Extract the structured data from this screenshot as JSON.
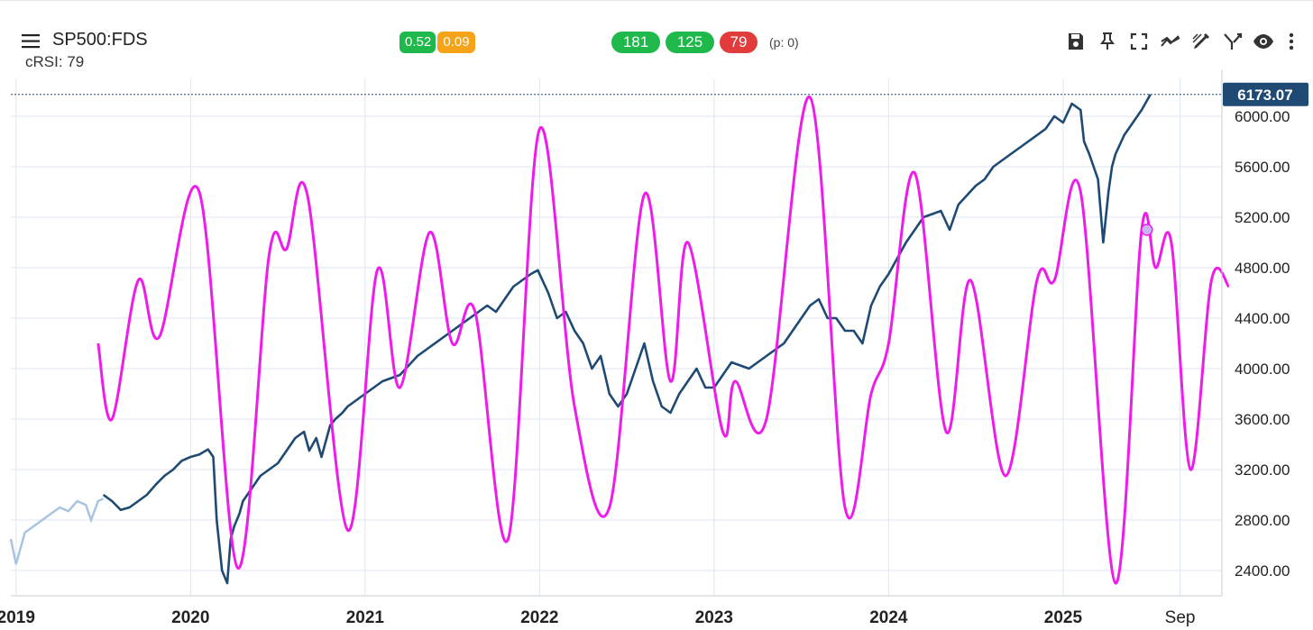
{
  "header": {
    "symbol": "SP500:FDS",
    "indicator_label": "cRSI: 79",
    "badges": {
      "a": "0.52",
      "b": "0.09"
    },
    "pills": {
      "p1": "181",
      "p2": "125",
      "p3": "79"
    },
    "p_note": "(p: 0)"
  },
  "toolbar": {
    "icons": [
      "save-icon",
      "pin-icon",
      "fullscreen-icon",
      "trend-icon",
      "draw-icon",
      "merge-icon",
      "eye-icon",
      "more-icon"
    ]
  },
  "colors": {
    "price": "#1f4a73",
    "price_history": "#a9c4e2",
    "crsi": "#ee1cea",
    "grid": "#dde6ef",
    "current_price_bg": "#1f4a73",
    "green": "#1fb84a",
    "orange": "#f5a318",
    "red": "#e23b3b"
  },
  "chart_data": {
    "type": "line",
    "title": "SP500:FDS",
    "xlabel": "",
    "ylabel": "",
    "ylim": [
      2200,
      6300
    ],
    "xlim": [
      2018.97,
      2025.91
    ],
    "y_ticks": [
      2400,
      2800,
      3200,
      3600,
      4000,
      4400,
      4800,
      5200,
      5600,
      6000
    ],
    "y_tick_labels": [
      "2400.00",
      "2800.00",
      "3200.00",
      "3600.00",
      "4000.00",
      "4400.00",
      "4800.00",
      "5200.00",
      "5600.00",
      "6000.00"
    ],
    "x_ticks": [
      2019.0,
      2020.0,
      2021.0,
      2022.0,
      2023.0,
      2024.0,
      2025.0,
      2025.67
    ],
    "x_tick_labels": [
      "2019",
      "2020",
      "2021",
      "2022",
      "2023",
      "2024",
      "2025",
      "Sep"
    ],
    "current_value": 6173.07,
    "current_value_label": "6173.07",
    "marker": {
      "x": 2025.48,
      "y": 5100
    },
    "series": [
      {
        "name": "SP500 (earlier)",
        "style": "history",
        "x": [
          2018.97,
          2019.0,
          2019.05,
          2019.1,
          2019.15,
          2019.2,
          2019.25,
          2019.3,
          2019.35,
          2019.4,
          2019.43,
          2019.47,
          2019.5
        ],
        "y": [
          2650,
          2450,
          2700,
          2750,
          2800,
          2850,
          2900,
          2870,
          2950,
          2920,
          2800,
          2950,
          2970
        ]
      },
      {
        "name": "SP500",
        "style": "price",
        "x": [
          2019.5,
          2019.55,
          2019.6,
          2019.65,
          2019.7,
          2019.75,
          2019.8,
          2019.85,
          2019.9,
          2019.95,
          2020.0,
          2020.05,
          2020.1,
          2020.13,
          2020.15,
          2020.18,
          2020.21,
          2020.23,
          2020.25,
          2020.28,
          2020.3,
          2020.35,
          2020.4,
          2020.45,
          2020.5,
          2020.55,
          2020.6,
          2020.65,
          2020.68,
          2020.72,
          2020.75,
          2020.8,
          2020.83,
          2020.87,
          2020.9,
          2020.95,
          2021.0,
          2021.1,
          2021.2,
          2021.3,
          2021.4,
          2021.5,
          2021.6,
          2021.7,
          2021.75,
          2021.8,
          2021.85,
          2021.9,
          2021.95,
          2021.99,
          2022.05,
          2022.1,
          2022.15,
          2022.2,
          2022.25,
          2022.3,
          2022.35,
          2022.4,
          2022.45,
          2022.5,
          2022.55,
          2022.6,
          2022.65,
          2022.7,
          2022.75,
          2022.8,
          2022.85,
          2022.9,
          2022.95,
          2023.0,
          2023.1,
          2023.2,
          2023.3,
          2023.4,
          2023.5,
          2023.55,
          2023.6,
          2023.65,
          2023.7,
          2023.75,
          2023.8,
          2023.85,
          2023.9,
          2023.95,
          2024.0,
          2024.1,
          2024.2,
          2024.3,
          2024.35,
          2024.4,
          2024.5,
          2024.55,
          2024.6,
          2024.7,
          2024.8,
          2024.9,
          2024.95,
          2025.0,
          2025.05,
          2025.1,
          2025.12,
          2025.15,
          2025.2,
          2025.23,
          2025.26,
          2025.28,
          2025.3,
          2025.35,
          2025.4,
          2025.45,
          2025.5
        ],
        "y": [
          3000,
          2950,
          2880,
          2900,
          2950,
          3000,
          3080,
          3150,
          3200,
          3270,
          3300,
          3320,
          3360,
          3300,
          2800,
          2400,
          2300,
          2650,
          2750,
          2850,
          2950,
          3050,
          3150,
          3200,
          3250,
          3350,
          3450,
          3500,
          3350,
          3450,
          3300,
          3550,
          3600,
          3650,
          3700,
          3750,
          3800,
          3900,
          3950,
          4100,
          4200,
          4300,
          4400,
          4500,
          4450,
          4550,
          4650,
          4700,
          4750,
          4780,
          4600,
          4400,
          4450,
          4300,
          4200,
          4000,
          4100,
          3800,
          3700,
          3800,
          4000,
          4200,
          3900,
          3700,
          3650,
          3800,
          3900,
          4000,
          3850,
          3850,
          4050,
          4000,
          4100,
          4200,
          4400,
          4500,
          4550,
          4400,
          4400,
          4300,
          4300,
          4200,
          4500,
          4650,
          4750,
          5000,
          5200,
          5250,
          5100,
          5300,
          5450,
          5500,
          5600,
          5700,
          5800,
          5900,
          6000,
          5950,
          6100,
          6050,
          5800,
          5700,
          5500,
          5000,
          5400,
          5600,
          5700,
          5850,
          5950,
          6050,
          6173
        ]
      },
      {
        "name": "cRSI",
        "style": "crsi",
        "x": [
          2019.47,
          2019.55,
          2019.7,
          2019.82,
          2020.05,
          2020.27,
          2020.45,
          2020.55,
          2020.67,
          2020.9,
          2021.07,
          2021.2,
          2021.37,
          2021.5,
          2021.63,
          2021.82,
          2022.0,
          2022.2,
          2022.4,
          2022.6,
          2022.75,
          2022.85,
          2023.05,
          2023.12,
          2023.3,
          2023.55,
          2023.75,
          2023.9,
          2024.0,
          2024.15,
          2024.33,
          2024.47,
          2024.67,
          2024.85,
          2024.95,
          2025.1,
          2025.3,
          2025.45,
          2025.53,
          2025.62,
          2025.73,
          2025.85,
          2025.95
        ],
        "y": [
          4200,
          3600,
          4700,
          4250,
          5400,
          2420,
          4900,
          4950,
          5370,
          2720,
          4780,
          3850,
          5080,
          4200,
          4450,
          2650,
          5900,
          3700,
          2900,
          5380,
          3900,
          5000,
          3500,
          3900,
          3600,
          6150,
          2900,
          3800,
          4200,
          5550,
          3500,
          4700,
          3150,
          4700,
          4700,
          5400,
          2300,
          5100,
          4800,
          5000,
          3200,
          4700,
          4650
        ]
      }
    ]
  }
}
